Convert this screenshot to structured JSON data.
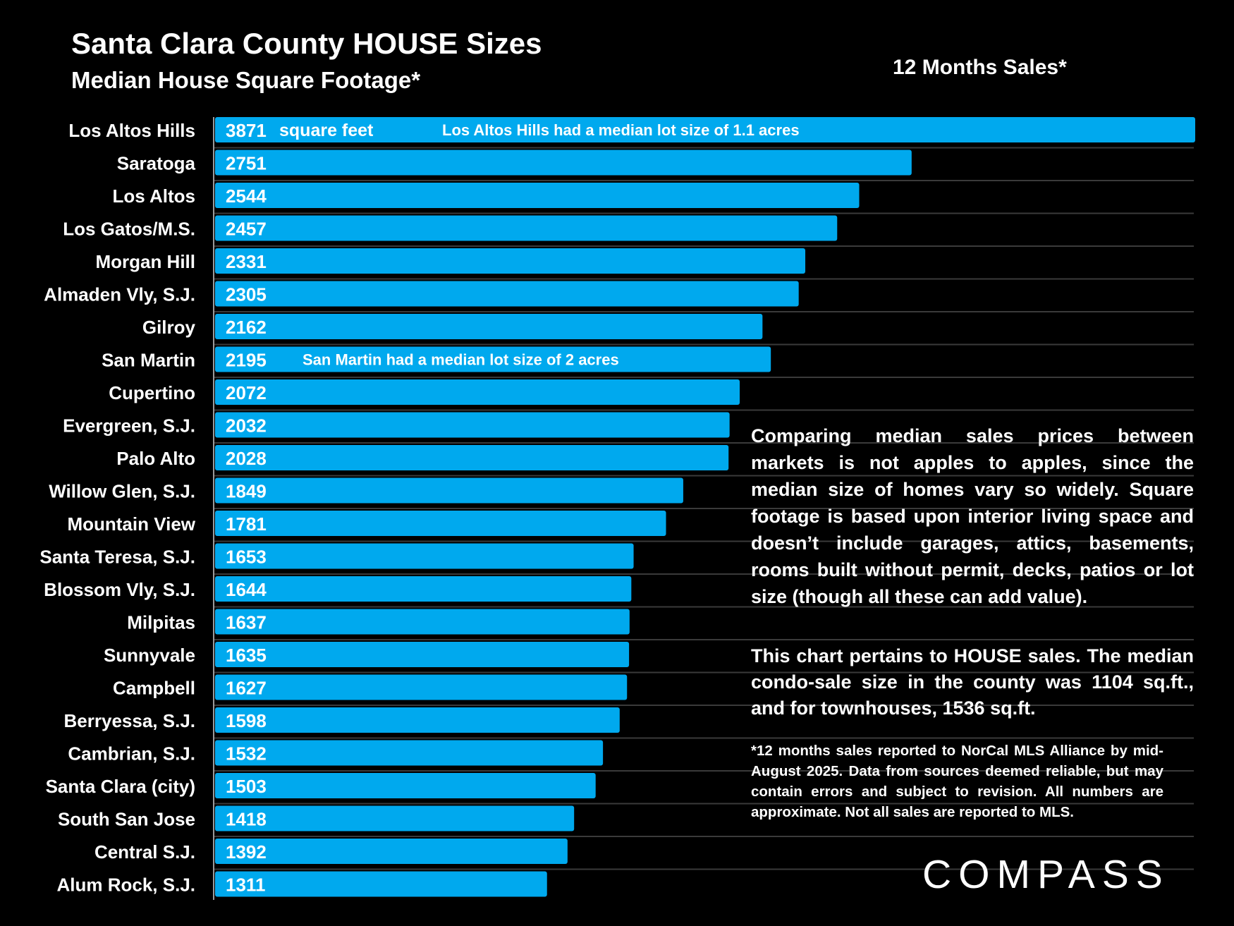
{
  "header": {
    "title": "Santa Clara County HOUSE Sizes",
    "subtitle": "Median House Square Footage*",
    "period": "12 Months Sales*"
  },
  "colors": {
    "bar": "#00A9EE",
    "background": "#000000",
    "gridline": "#3a3a3a"
  },
  "chart_data": {
    "type": "bar",
    "orientation": "horizontal",
    "title": "Santa Clara County HOUSE Sizes",
    "subtitle": "Median House Square Footage*",
    "unit": "square feet",
    "xlim": [
      0,
      3871
    ],
    "categories": [
      "Los Altos Hills",
      "Saratoga",
      "Los Altos",
      "Los Gatos/M.S.",
      "Morgan Hill",
      "Almaden Vly, S.J.",
      "Gilroy",
      "San Martin",
      "Cupertino",
      "Evergreen, S.J.",
      "Palo Alto",
      "Willow Glen, S.J.",
      "Mountain View",
      "Santa Teresa, S.J.",
      "Blossom Vly, S.J.",
      "Milpitas",
      "Sunnyvale",
      "Campbell",
      "Berryessa, S.J.",
      "Cambrian, S.J.",
      "Santa Clara (city)",
      "South San Jose",
      "Central S.J.",
      "Alum Rock, S.J."
    ],
    "values": [
      3871,
      2751,
      2544,
      2457,
      2331,
      2305,
      2162,
      2195,
      2072,
      2032,
      2028,
      1849,
      1781,
      1653,
      1644,
      1637,
      1635,
      1627,
      1598,
      1532,
      1503,
      1418,
      1392,
      1311
    ],
    "annotations": [
      {
        "category": "Los Altos Hills",
        "text": "Los Altos Hills had a median lot size of 1.1 acres"
      },
      {
        "category": "San Martin",
        "text": "San Martin had a median lot size of 2 acres"
      }
    ]
  },
  "notes": {
    "paragraph1": "Comparing median sales prices between markets is not apples to apples, since the median size of homes vary so widely. Square footage is based upon interior living space and doesn’t include garages, attics, basements, rooms built without permit, decks, patios or lot size (though all these can add value).",
    "paragraph2": "This chart pertains to HOUSE sales. The median condo-sale size in the county was 1104 sq.ft., and for townhouses, 1536 sq.ft.",
    "footnote": "*12 months sales reported to NorCal MLS Alliance by mid-August 2025. Data from sources deemed reliable, but may contain errors and subject to revision. All numbers are approximate. Not all sales are reported to MLS."
  },
  "logo": {
    "text": "COMPASS"
  }
}
